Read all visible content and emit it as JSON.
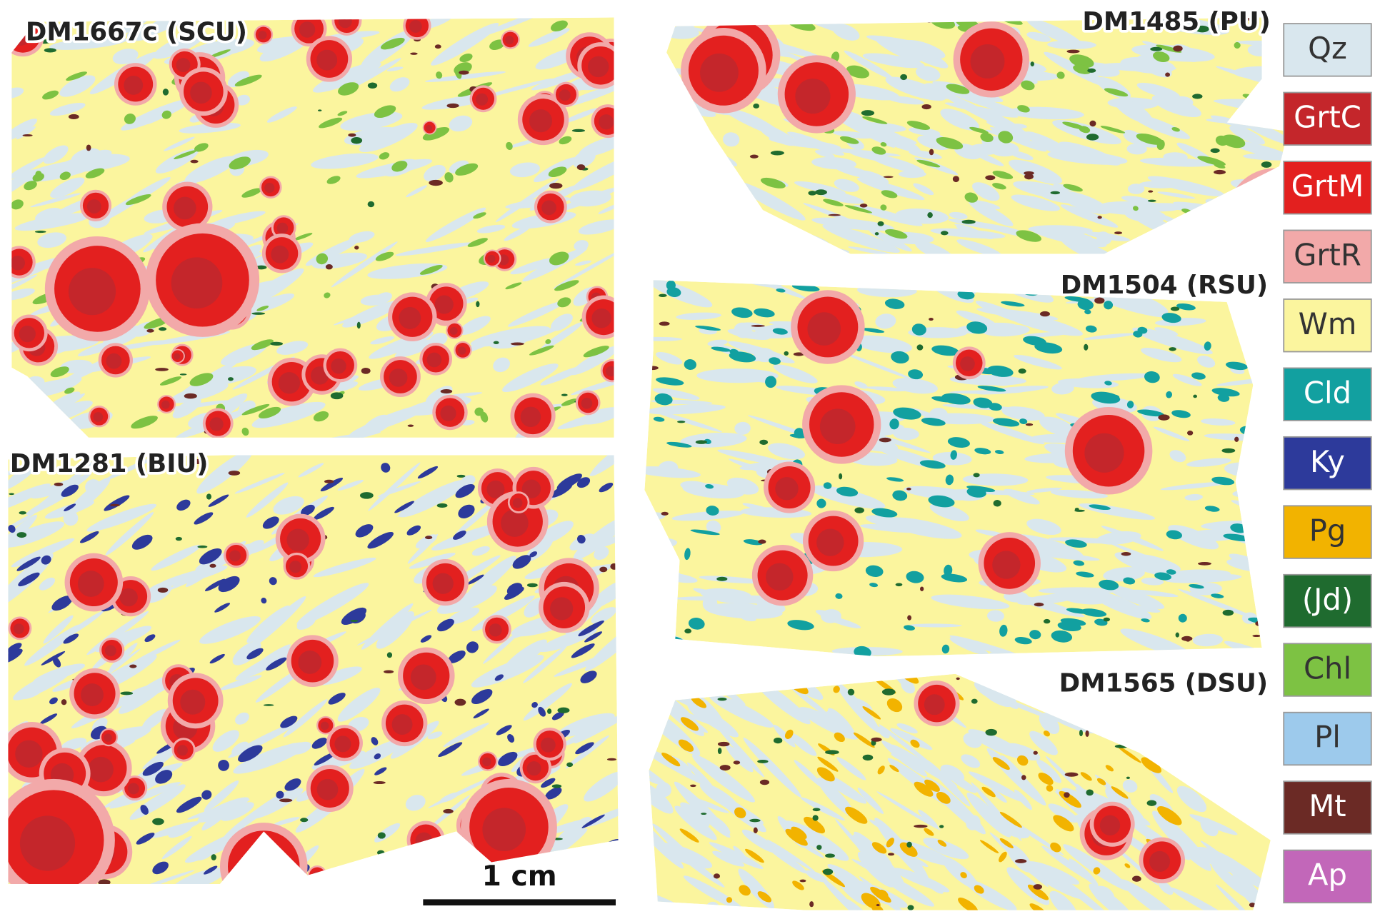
{
  "panels": [
    {
      "label": "DM1667c (SCU)"
    },
    {
      "label": "DM1281 (BIU)"
    },
    {
      "label": "DM1485 (PU)"
    },
    {
      "label": "DM1504 (RSU)"
    },
    {
      "label": "DM1565 (DSU)"
    }
  ],
  "legend": [
    {
      "label": "Qz",
      "color": "#d9e7ee"
    },
    {
      "label": "GrtC",
      "color": "#c4262b"
    },
    {
      "label": "GrtM",
      "color": "#e3201f"
    },
    {
      "label": "GrtR",
      "color": "#f2a9a9"
    },
    {
      "label": "Wm",
      "color": "#fbf59e"
    },
    {
      "label": "Cld",
      "color": "#12a0a0"
    },
    {
      "label": "Ky",
      "color": "#2d3a9b"
    },
    {
      "label": "Pg",
      "color": "#f2b300"
    },
    {
      "label": "(Jd)",
      "color": "#1f6b2f"
    },
    {
      "label": "Chl",
      "color": "#7dc243"
    },
    {
      "label": "Pl",
      "color": "#9dcaec"
    },
    {
      "label": "Mt",
      "color": "#6b2a25"
    },
    {
      "label": "Ap",
      "color": "#c267b9"
    }
  ],
  "scale_bar": {
    "label": "1 cm"
  }
}
